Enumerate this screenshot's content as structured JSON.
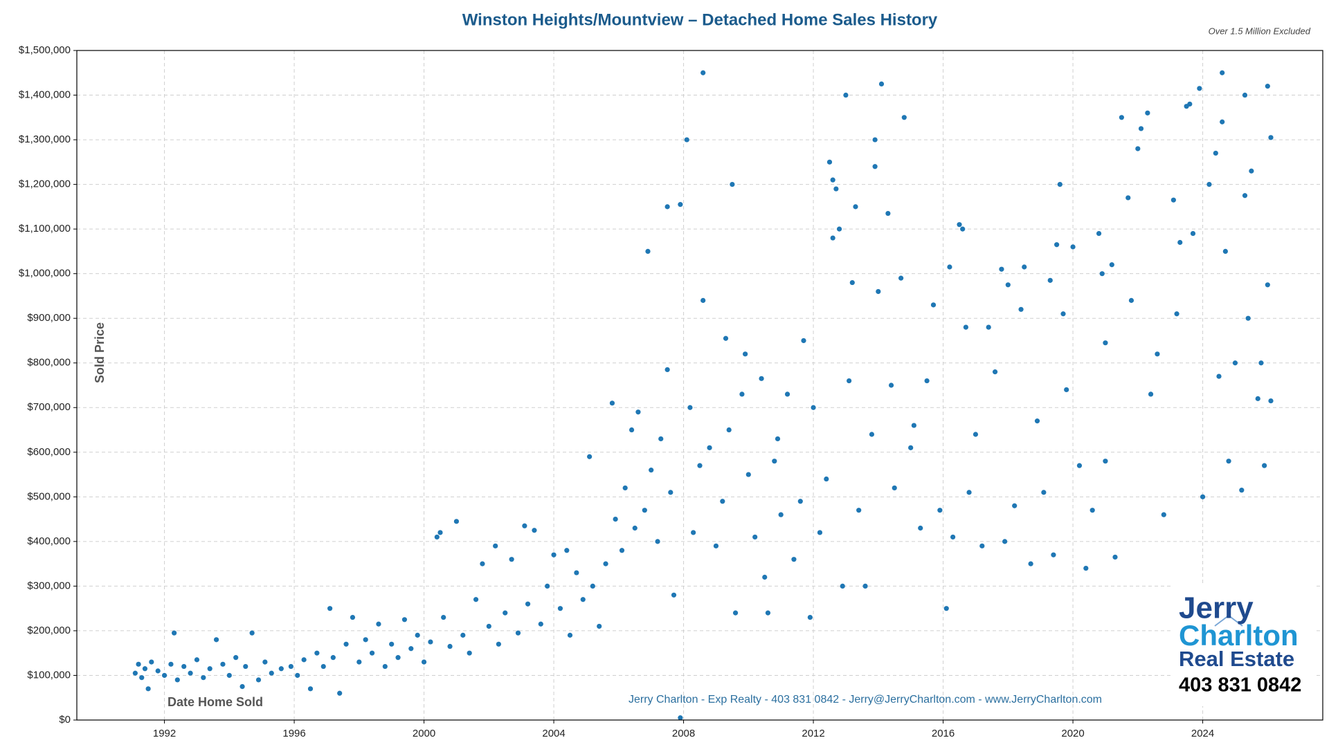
{
  "chart_data": {
    "type": "scatter",
    "title": "Winston Heights/Mountview – Detached Home Sales History",
    "note": "Over 1.5 Million Excluded",
    "ylabel": "Sold Price",
    "xlabel": "Date Home Sold",
    "footer": "Jerry Charlton - Exp Realty - 403 831 0842 - Jerry@JerryCharlton.com - www.JerryCharlton.com",
    "color": "#1f77b4",
    "grid": true,
    "xlim": [
      1989.3,
      2027.7
    ],
    "xticks": [
      1992,
      1996,
      2000,
      2004,
      2008,
      2012,
      2016,
      2020,
      2024
    ],
    "ylim": [
      0,
      1500000
    ],
    "yticks": [
      {
        "value": 0,
        "label": "$0"
      },
      {
        "value": 100000,
        "label": "$100,000"
      },
      {
        "value": 200000,
        "label": "$200,000"
      },
      {
        "value": 300000,
        "label": "$300,000"
      },
      {
        "value": 400000,
        "label": "$400,000"
      },
      {
        "value": 500000,
        "label": "$500,000"
      },
      {
        "value": 600000,
        "label": "$600,000"
      },
      {
        "value": 700000,
        "label": "$700,000"
      },
      {
        "value": 800000,
        "label": "$800,000"
      },
      {
        "value": 900000,
        "label": "$900,000"
      },
      {
        "value": 1000000,
        "label": "$1,000,000"
      },
      {
        "value": 1100000,
        "label": "$1,100,000"
      },
      {
        "value": 1200000,
        "label": "$1,200,000"
      },
      {
        "value": 1300000,
        "label": "$1,300,000"
      },
      {
        "value": 1400000,
        "label": "$1,400,000"
      },
      {
        "value": 1500000,
        "label": "$1,500,000"
      }
    ],
    "x": [
      1991.1,
      1991.2,
      1991.3,
      1991.4,
      1991.5,
      1991.6,
      1991.8,
      1992.0,
      1992.2,
      1992.3,
      1992.4,
      1992.6,
      1992.8,
      1993.0,
      1993.2,
      1993.4,
      1993.6,
      1993.8,
      1994.0,
      1994.2,
      1994.4,
      1994.5,
      1994.7,
      1994.9,
      1995.1,
      1995.3,
      1995.6,
      1995.9,
      1996.1,
      1996.3,
      1996.5,
      1996.7,
      1996.9,
      1997.1,
      1997.2,
      1997.4,
      1997.6,
      1997.8,
      1998.0,
      1998.2,
      1998.4,
      1998.6,
      1998.8,
      1999.0,
      1999.2,
      1999.4,
      1999.6,
      1999.8,
      2000.0,
      2000.2,
      2000.4,
      2000.5,
      2000.6,
      2000.8,
      2001.0,
      2001.2,
      2001.4,
      2001.6,
      2001.8,
      2002.0,
      2002.2,
      2002.3,
      2002.5,
      2002.7,
      2002.9,
      2003.1,
      2003.2,
      2003.4,
      2003.6,
      2003.8,
      2004.0,
      2004.2,
      2004.4,
      2004.5,
      2004.7,
      2004.9,
      2005.1,
      2005.2,
      2005.4,
      2005.6,
      2005.8,
      2005.9,
      2006.1,
      2006.2,
      2006.4,
      2006.5,
      2006.6,
      2006.8,
      2006.9,
      2007.0,
      2007.2,
      2007.3,
      2007.5,
      2007.5,
      2007.6,
      2007.7,
      2007.9,
      2007.9,
      2008.1,
      2008.2,
      2008.3,
      2008.5,
      2008.6,
      2008.6,
      2008.8,
      2009.0,
      2009.2,
      2009.3,
      2009.5,
      2009.6,
      2009.8,
      2009.9,
      2010.0,
      2010.2,
      2010.4,
      2010.5,
      2010.6,
      2010.8,
      2011.0,
      2011.2,
      2011.4,
      2011.6,
      2011.7,
      2011.9,
      2012.0,
      2012.2,
      2012.4,
      2012.5,
      2012.6,
      2012.6,
      2012.7,
      2012.8,
      2012.9,
      2013.0,
      2013.1,
      2013.2,
      2013.3,
      2013.4,
      2013.6,
      2013.8,
      2013.9,
      2013.9,
      2014.0,
      2014.1,
      2014.3,
      2014.4,
      2014.5,
      2014.7,
      2014.8,
      2015.0,
      2015.1,
      2015.3,
      2015.5,
      2015.7,
      2015.9,
      2016.1,
      2016.2,
      2016.3,
      2016.5,
      2016.6,
      2016.7,
      2016.8,
      2017.0,
      2017.2,
      2017.4,
      2017.6,
      2017.8,
      2018.0,
      2018.2,
      2018.4,
      2018.5,
      2018.7,
      2018.9,
      2019.1,
      2019.3,
      2019.4,
      2019.5,
      2019.6,
      2019.7,
      2019.8,
      2020.0,
      2020.2,
      2020.4,
      2020.6,
      2020.8,
      2020.9,
      2021.0,
      2021.2,
      2021.3,
      2021.5,
      2021.7,
      2021.8,
      2022.0,
      2022.1,
      2022.3,
      2022.4,
      2022.6,
      2022.8,
      2023.1,
      2023.2,
      2023.3,
      2023.5,
      2023.6,
      2023.7,
      2023.9,
      2024.0,
      2024.2,
      2024.4,
      2024.5,
      2024.6,
      2024.6,
      2024.7,
      2024.8,
      2025.0,
      2025.2,
      2025.3,
      2025.3,
      2025.5,
      2025.7,
      2025.8,
      2025.9,
      2026.0,
      2026.0,
      2026.1,
      2026.1,
      2025.4,
      2021.0,
      2017.9,
      2010.9,
      2009.4
    ],
    "values": [
      105000,
      125000,
      95000,
      115000,
      70000,
      130000,
      110000,
      100000,
      125000,
      195000,
      90000,
      120000,
      105000,
      135000,
      95000,
      115000,
      180000,
      125000,
      100000,
      140000,
      75000,
      120000,
      195000,
      90000,
      130000,
      105000,
      115000,
      120000,
      100000,
      135000,
      70000,
      150000,
      120000,
      250000,
      140000,
      60000,
      170000,
      230000,
      130000,
      180000,
      150000,
      215000,
      120000,
      170000,
      140000,
      225000,
      160000,
      190000,
      130000,
      175000,
      410000,
      420000,
      230000,
      165000,
      445000,
      190000,
      150000,
      270000,
      350000,
      210000,
      390000,
      170000,
      240000,
      360000,
      195000,
      435000,
      260000,
      425000,
      215000,
      300000,
      370000,
      250000,
      380000,
      190000,
      330000,
      270000,
      590000,
      300000,
      210000,
      350000,
      710000,
      450000,
      380000,
      520000,
      650000,
      430000,
      690000,
      470000,
      1050000,
      560000,
      400000,
      630000,
      785000,
      1150000,
      510000,
      280000,
      1155000,
      5000,
      1300000,
      700000,
      420000,
      570000,
      1450000,
      940000,
      610000,
      390000,
      490000,
      855000,
      1200000,
      240000,
      730000,
      820000,
      550000,
      410000,
      765000,
      320000,
      240000,
      580000,
      460000,
      730000,
      360000,
      490000,
      850000,
      230000,
      700000,
      420000,
      540000,
      1250000,
      1210000,
      1080000,
      1190000,
      1100000,
      300000,
      1400000,
      760000,
      980000,
      1150000,
      470000,
      300000,
      640000,
      1300000,
      1240000,
      960000,
      1425000,
      1135000,
      750000,
      520000,
      990000,
      1350000,
      610000,
      660000,
      430000,
      760000,
      930000,
      470000,
      250000,
      1015000,
      410000,
      1110000,
      1100000,
      880000,
      510000,
      640000,
      390000,
      880000,
      780000,
      1010000,
      975000,
      480000,
      920000,
      1015000,
      350000,
      670000,
      510000,
      985000,
      370000,
      1065000,
      1200000,
      910000,
      740000,
      1060000,
      570000,
      340000,
      470000,
      1090000,
      1000000,
      580000,
      1020000,
      365000,
      1350000,
      1170000,
      940000,
      1280000,
      1325000,
      1360000,
      730000,
      820000,
      460000,
      1165000,
      910000,
      1070000,
      1375000,
      1380000,
      1090000,
      1415000,
      500000,
      1200000,
      1270000,
      770000,
      1450000,
      1340000,
      1050000,
      580000,
      800000,
      515000,
      1400000,
      1175000,
      1230000,
      720000,
      800000,
      570000,
      1420000,
      975000,
      1305000,
      715000,
      900000,
      845000,
      400000,
      630000,
      650000
    ]
  },
  "logo": {
    "line1": "Jerry",
    "line2": "Charlton",
    "line3": "Real Estate",
    "phone": "403 831 0842"
  }
}
